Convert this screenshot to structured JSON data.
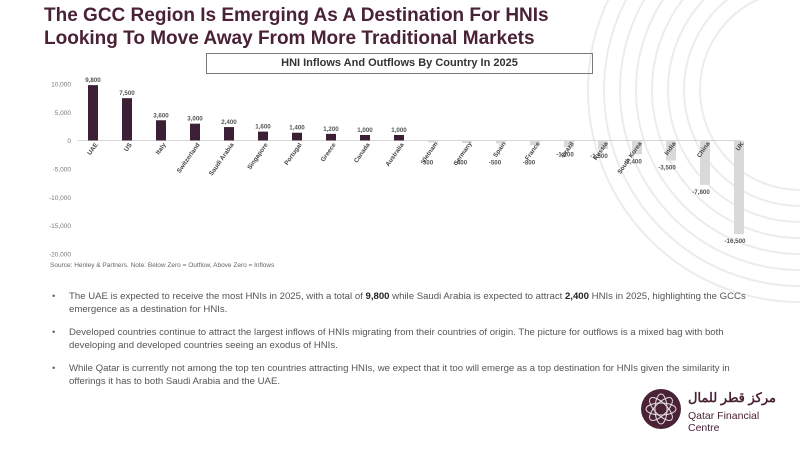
{
  "page": {
    "title_line1": "The GCC Region Is Emerging As A Destination For HNIs",
    "title_line2": "Looking To Move Away From More Traditional Markets",
    "source": "Source: Henley & Partners. Note: Below Zero = Outflow, Above Zero = Inflows"
  },
  "bullets": [
    {
      "pre": "The UAE is expected to receive the most HNIs in 2025, with a total of ",
      "b1": "9,800",
      "mid": " while Saudi Arabia is expected to attract ",
      "b2": "2,400",
      "post": " HNIs in 2025, highlighting the GCCs emergence as a destination for HNIs."
    },
    {
      "text": "Developed countries continue to attract the largest inflows of HNIs migrating from their countries of origin. The picture for outflows is a mixed bag with both developing and developed countries seeing an exodus of HNIs."
    },
    {
      "text": "While Qatar is currently not among the top ten countries attracting HNIs, we expect that it too will emerge as a top destination for HNIs given the similarity in offerings it has to both Saudi Arabia and the UAE."
    }
  ],
  "logo": {
    "arabic": "مركز قطر للمال",
    "english": "Qatar Financial Centre"
  },
  "colors": {
    "inflow": "#3d1f35",
    "outflow": "#d9d9d9",
    "brand": "#4a2236"
  },
  "chart_data": {
    "type": "bar",
    "title": "HNI Inflows And Outflows By Country In 2025",
    "categories": [
      "UAE",
      "US",
      "Italy",
      "Switzerland",
      "Saudi Arabia",
      "Singapore",
      "Portugal",
      "Greece",
      "Canada",
      "Australia",
      "Vietnam",
      "Germany",
      "Spain",
      "France",
      "Brazil",
      "Russia",
      "South Korea",
      "India",
      "China",
      "UK"
    ],
    "values": [
      9800,
      7500,
      3600,
      3000,
      2400,
      1600,
      1400,
      1200,
      1000,
      1000,
      -300,
      -400,
      -500,
      -800,
      -1200,
      -1500,
      -2400,
      -3500,
      -7800,
      -16500
    ],
    "value_labels": [
      "9,800",
      "7,500",
      "3,600",
      "3,000",
      "2,400",
      "1,600",
      "1,400",
      "1,200",
      "1,000",
      "1,000",
      "-300",
      "-400",
      "-500",
      "-800",
      "-1,200",
      "-1,500",
      "-2,400",
      "-3,500",
      "-7,800",
      "-16,500"
    ],
    "ylim": [
      -20000,
      10000
    ],
    "yticks": [
      10000,
      5000,
      0,
      -5000,
      -10000,
      -15000,
      -20000
    ],
    "ytick_labels": [
      "10,000",
      "5,000",
      "0",
      "-5,000",
      "-10,000",
      "-15,000",
      "-20,000"
    ],
    "xlabel": "",
    "ylabel": "",
    "grid": false
  }
}
